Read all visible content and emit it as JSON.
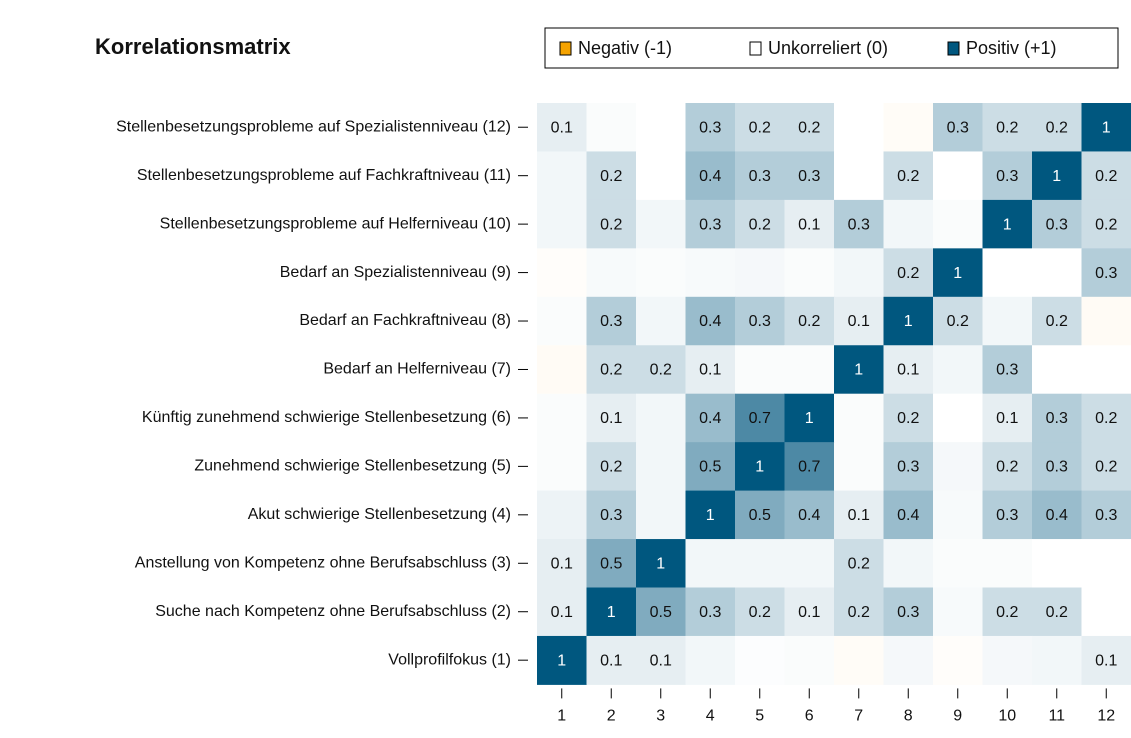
{
  "chart_data": {
    "type": "heatmap",
    "title": "Korrelationsmatrix",
    "legend": [
      "Negativ (-1)",
      "Unkorreliert (0)",
      "Positiv (+1)"
    ],
    "color_scale": {
      "low": "#f5a300",
      "mid": "#ffffff",
      "high": "#00577f"
    },
    "zlim": [
      -1,
      1
    ],
    "x_categories": [
      "1",
      "2",
      "3",
      "4",
      "5",
      "6",
      "7",
      "8",
      "9",
      "10",
      "11",
      "12"
    ],
    "y_categories": [
      "Stellenbesetzungsprobleme auf Spezialistenniveau (12)",
      "Stellenbesetzungsprobleme auf Fachkraftniveau (11)",
      "Stellenbesetzungsprobleme auf Helferniveau (10)",
      "Bedarf an Spezialistenniveau (9)",
      "Bedarf an Fachkraftniveau (8)",
      "Bedarf an Helferniveau (7)",
      "Künftig zunehmend schwierige Stellenbesetzung (6)",
      "Zunehmend schwierige Stellenbesetzung (5)",
      "Akut schwierige Stellenbesetzung (4)",
      "Anstellung von Kompetenz ohne Berufsabschluss (3)",
      "Suche nach Kompetenz ohne Berufsabschluss (2)",
      "Vollprofilfokus (1)"
    ],
    "values": [
      [
        0.1,
        0.02,
        0,
        0.3,
        0.2,
        0.2,
        0,
        -0.03,
        0.3,
        0.2,
        0.2,
        1
      ],
      [
        0.05,
        0.2,
        0,
        0.4,
        0.3,
        0.3,
        0,
        0.2,
        0,
        0.3,
        1,
        0.2
      ],
      [
        0.05,
        0.2,
        0.05,
        0.3,
        0.2,
        0.1,
        0.3,
        0.05,
        0.02,
        1,
        0.3,
        0.2
      ],
      [
        -0.02,
        0.03,
        0.02,
        0.03,
        0.04,
        0.02,
        0.05,
        0.2,
        1,
        0,
        0,
        0.3
      ],
      [
        0.02,
        0.3,
        0.05,
        0.4,
        0.3,
        0.2,
        0.1,
        1,
        0.2,
        0.05,
        0.2,
        -0.04
      ],
      [
        -0.04,
        0.2,
        0.2,
        0.1,
        0.02,
        0.02,
        1,
        0.1,
        0.05,
        0.3,
        0,
        0
      ],
      [
        0.02,
        0.1,
        0.05,
        0.4,
        0.7,
        1,
        0.02,
        0.2,
        0,
        0.1,
        0.3,
        0.2
      ],
      [
        0.02,
        0.2,
        0.05,
        0.5,
        1,
        0.7,
        0.02,
        0.3,
        0.04,
        0.2,
        0.3,
        0.2
      ],
      [
        0.07,
        0.3,
        0.05,
        1,
        0.5,
        0.4,
        0.1,
        0.4,
        0.03,
        0.3,
        0.4,
        0.3
      ],
      [
        0.1,
        0.5,
        1,
        0.05,
        0.05,
        0.05,
        0.2,
        0.05,
        0.02,
        0.02,
        0,
        0
      ],
      [
        0.1,
        1,
        0.5,
        0.3,
        0.2,
        0.1,
        0.2,
        0.3,
        0.03,
        0.2,
        0.2,
        0
      ],
      [
        1,
        0.1,
        0.1,
        0.05,
        0.01,
        0.02,
        -0.03,
        0.04,
        -0.02,
        0.04,
        0.05,
        0.1
      ]
    ],
    "value_labels": [
      [
        "0.1",
        null,
        null,
        "0.3",
        "0.2",
        "0.2",
        null,
        null,
        "0.3",
        "0.2",
        "0.2",
        "1"
      ],
      [
        null,
        "0.2",
        null,
        "0.4",
        "0.3",
        "0.3",
        null,
        "0.2",
        null,
        "0.3",
        "1",
        "0.2"
      ],
      [
        null,
        "0.2",
        null,
        "0.3",
        "0.2",
        "0.1",
        "0.3",
        null,
        null,
        "1",
        "0.3",
        "0.2"
      ],
      [
        null,
        null,
        null,
        null,
        null,
        null,
        null,
        "0.2",
        "1",
        null,
        null,
        "0.3"
      ],
      [
        null,
        "0.3",
        null,
        "0.4",
        "0.3",
        "0.2",
        "0.1",
        "1",
        "0.2",
        null,
        "0.2",
        null
      ],
      [
        null,
        "0.2",
        "0.2",
        "0.1",
        null,
        null,
        "1",
        "0.1",
        null,
        "0.3",
        null,
        null
      ],
      [
        null,
        "0.1",
        null,
        "0.4",
        "0.7",
        "1",
        null,
        "0.2",
        null,
        "0.1",
        "0.3",
        "0.2"
      ],
      [
        null,
        "0.2",
        null,
        "0.5",
        "1",
        "0.7",
        null,
        "0.3",
        null,
        "0.2",
        "0.3",
        "0.2"
      ],
      [
        null,
        "0.3",
        null,
        "1",
        "0.5",
        "0.4",
        "0.1",
        "0.4",
        null,
        "0.3",
        "0.4",
        "0.3"
      ],
      [
        "0.1",
        "0.5",
        "1",
        null,
        null,
        null,
        "0.2",
        null,
        null,
        null,
        null,
        null
      ],
      [
        "0.1",
        "1",
        "0.5",
        "0.3",
        "0.2",
        "0.1",
        "0.2",
        "0.3",
        null,
        "0.2",
        "0.2",
        null
      ],
      [
        "1",
        "0.1",
        "0.1",
        null,
        null,
        null,
        null,
        null,
        null,
        null,
        null,
        "0.1"
      ]
    ]
  }
}
